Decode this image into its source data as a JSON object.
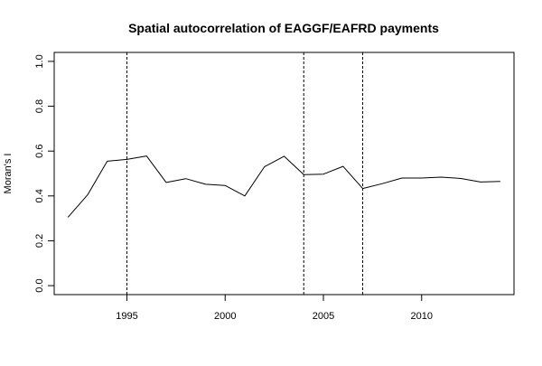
{
  "chart_data": {
    "type": "line",
    "title": "Spatial autocorrelation of EAGGF/EAFRD payments",
    "xlabel": "",
    "ylabel": "Moran's I",
    "xlim": [
      1991.3,
      2014.7
    ],
    "ylim": [
      -0.04,
      1.04
    ],
    "x_ticks": [
      1995,
      2000,
      2005,
      2010
    ],
    "x_tick_labels": [
      "1995",
      "2000",
      "2005",
      "2010"
    ],
    "y_ticks": [
      0.0,
      0.2,
      0.4,
      0.6,
      0.8,
      1.0
    ],
    "y_tick_labels": [
      "0.0",
      "0.2",
      "0.4",
      "0.6",
      "0.8",
      "1.0"
    ],
    "grid": false,
    "legend": "none",
    "series": [
      {
        "x": [
          1992,
          1993,
          1994,
          1995,
          1996,
          1997,
          1998,
          1999,
          2000,
          2001,
          2002,
          2003,
          2004,
          2005,
          2006,
          2007,
          2008,
          2009,
          2010,
          2011,
          2012,
          2013,
          2014
        ],
        "values": [
          0.305,
          0.405,
          0.555,
          0.563,
          0.578,
          0.46,
          0.477,
          0.452,
          0.447,
          0.4,
          0.53,
          0.577,
          0.495,
          0.497,
          0.532,
          0.433,
          0.455,
          0.48,
          0.48,
          0.484,
          0.478,
          0.462,
          0.465
        ],
        "color": "#000000"
      }
    ],
    "vertical_lines": [
      {
        "x": 1995,
        "style": "dotted"
      },
      {
        "x": 2004,
        "style": "dotted"
      },
      {
        "x": 2007,
        "style": "dotted"
      }
    ]
  }
}
